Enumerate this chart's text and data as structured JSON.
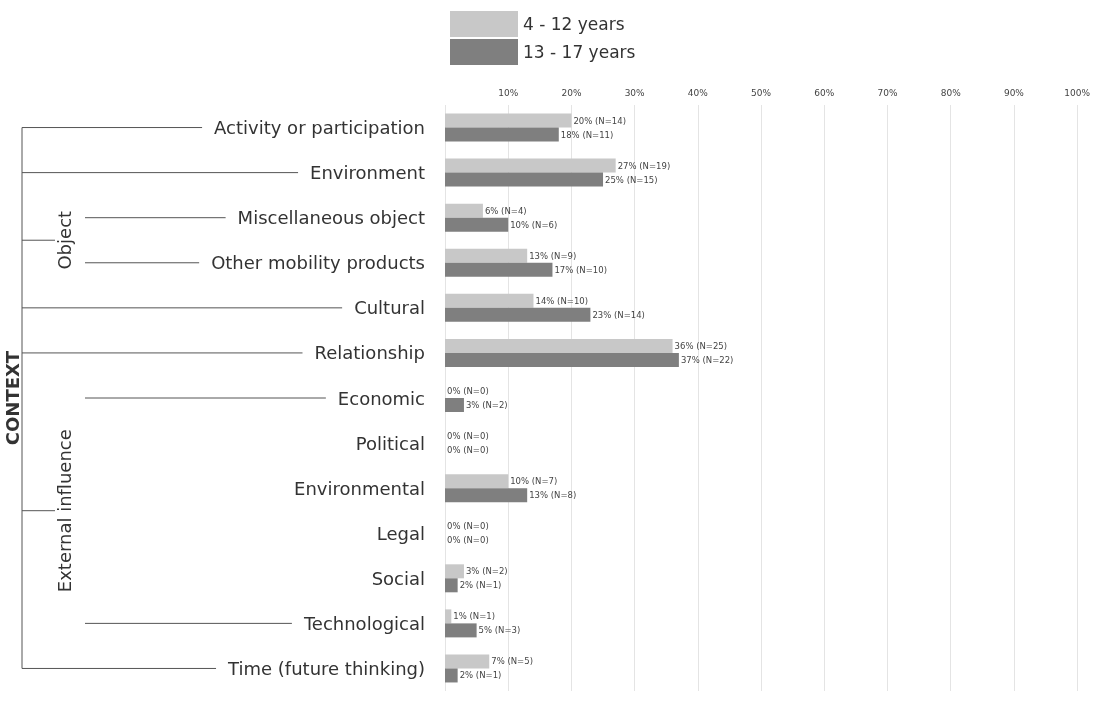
{
  "chart_data": {
    "type": "bar",
    "orientation": "horizontal",
    "categories": [
      "Activity or participation",
      "Environment",
      "Miscellaneous object",
      "Other mobility products",
      "Cultural",
      "Relationship",
      "Economic",
      "Political",
      "Environmental",
      "Legal",
      "Social",
      "Technological",
      "Time (future thinking)"
    ],
    "series": [
      {
        "name": "4 - 12 years",
        "color": "#c8c8c8",
        "values": [
          20,
          27,
          6,
          13,
          14,
          36,
          0,
          0,
          10,
          0,
          3,
          1,
          7
        ],
        "value_labels": [
          "20% (N=14)",
          "27% (N=19)",
          "6% (N=4)",
          "13% (N=9)",
          "14% (N=10)",
          "36% (N=25)",
          "0% (N=0)",
          "0% (N=0)",
          "10% (N=7)",
          "0% (N=0)",
          "3% (N=2)",
          "1% (N=1)",
          "7% (N=5)"
        ]
      },
      {
        "name": "13 - 17 years",
        "color": "#7f7f7f",
        "values": [
          18,
          25,
          10,
          17,
          23,
          37,
          3,
          0,
          13,
          0,
          2,
          5,
          2
        ],
        "value_labels": [
          "18% (N=11)",
          "25% (N=15)",
          "10% (N=6)",
          "17% (N=10)",
          "23% (N=14)",
          "37% (N=22)",
          "3% (N=2)",
          "0% (N=0)",
          "13% (N=8)",
          "0% (N=0)",
          "2% (N=1)",
          "5% (N=3)",
          "2% (N=1)"
        ]
      }
    ],
    "xlim": [
      0,
      100
    ],
    "xticks": [
      {
        "value": 0,
        "label": null
      },
      {
        "value": 10,
        "label": "10%"
      },
      {
        "value": 20,
        "label": "20%"
      },
      {
        "value": 30,
        "label": "30%"
      },
      {
        "value": 40,
        "label": "40%"
      },
      {
        "value": 50,
        "label": "50%"
      },
      {
        "value": 60,
        "label": "60%"
      },
      {
        "value": 70,
        "label": "70%"
      },
      {
        "value": 80,
        "label": "80%"
      },
      {
        "value": 90,
        "label": "90%"
      },
      {
        "value": 100,
        "label": "100%"
      }
    ],
    "grid": "x",
    "legend": "top left",
    "annotations": [
      "CONTEXT",
      "Object",
      "External influence"
    ]
  }
}
